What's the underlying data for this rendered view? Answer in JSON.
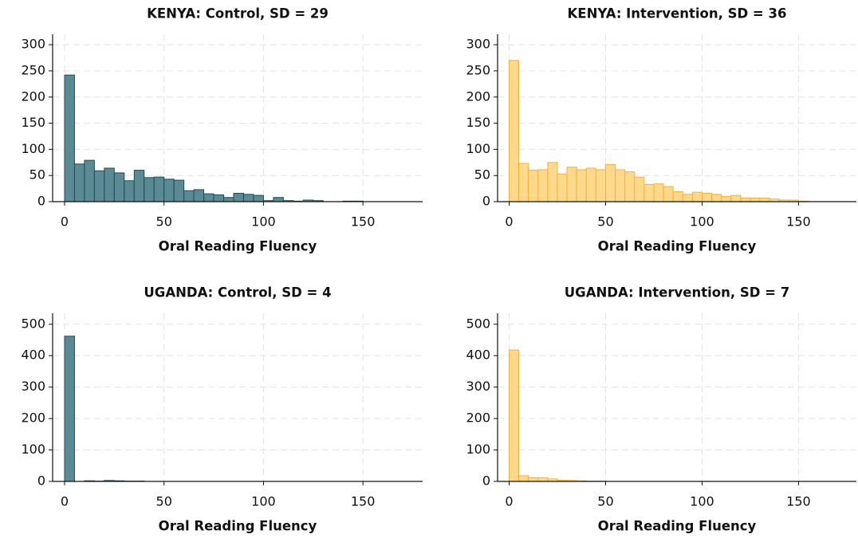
{
  "chart_data": [
    {
      "type": "histogram",
      "title": "KENYA: Control, SD = 29",
      "xlabel": "Oral Reading Fluency",
      "bins": [
        0,
        5,
        10,
        15,
        20,
        25,
        30,
        35,
        40,
        45,
        50,
        55,
        60,
        65,
        70,
        75,
        80,
        85,
        90,
        95,
        100,
        105,
        110,
        115,
        120,
        125,
        130,
        135,
        140,
        145,
        150,
        155,
        160,
        165,
        170
      ],
      "values": [
        242,
        72,
        79,
        59,
        64,
        55,
        40,
        60,
        46,
        47,
        43,
        41,
        21,
        23,
        15,
        13,
        8,
        16,
        14,
        12,
        2,
        8,
        2,
        1,
        3,
        2,
        0,
        0,
        1,
        1,
        0,
        0,
        0,
        0
      ],
      "color": "#5b8a94",
      "edgecolor": "#1e4d56",
      "xlim": [
        -6,
        180
      ],
      "ylim": [
        0,
        320
      ],
      "xticks": [
        0,
        50,
        100,
        150
      ],
      "yticks": [
        0,
        50,
        100,
        150,
        200,
        250,
        300
      ],
      "grid": true
    },
    {
      "type": "histogram",
      "title": "KENYA: Intervention, SD = 36",
      "xlabel": "Oral Reading Fluency",
      "bins": [
        0,
        5,
        10,
        15,
        20,
        25,
        30,
        35,
        40,
        45,
        50,
        55,
        60,
        65,
        70,
        75,
        80,
        85,
        90,
        95,
        100,
        105,
        110,
        115,
        120,
        125,
        130,
        135,
        140,
        145,
        150,
        155,
        160,
        165,
        170
      ],
      "values": [
        270,
        73,
        60,
        61,
        75,
        53,
        66,
        61,
        64,
        61,
        71,
        61,
        57,
        47,
        33,
        34,
        29,
        19,
        14,
        18,
        16,
        14,
        10,
        12,
        7,
        7,
        7,
        5,
        3,
        3,
        1,
        0,
        0,
        0
      ],
      "color": "#fed98c",
      "edgecolor": "#f4b13c",
      "xlim": [
        -6,
        180
      ],
      "ylim": [
        0,
        320
      ],
      "xticks": [
        0,
        50,
        100,
        150
      ],
      "yticks": [
        0,
        50,
        100,
        150,
        200,
        250,
        300
      ],
      "grid": true
    },
    {
      "type": "histogram",
      "title": "UGANDA: Control, SD = 4",
      "xlabel": "Oral Reading Fluency",
      "bins": [
        0,
        5,
        10,
        15,
        20,
        25,
        30,
        35,
        40,
        45,
        50,
        55,
        60,
        65,
        70,
        75,
        80,
        85,
        90,
        95,
        100,
        105,
        110,
        115,
        120,
        125,
        130,
        135,
        140,
        145,
        150,
        155,
        160,
        165,
        170
      ],
      "values": [
        462,
        0,
        2,
        1,
        3,
        2,
        1,
        1,
        0,
        0,
        0,
        0,
        0,
        0,
        0,
        0,
        0,
        0,
        0,
        0,
        0,
        0,
        0,
        0,
        0,
        0,
        0,
        0,
        0,
        0,
        0,
        0,
        0,
        0
      ],
      "color": "#5b8a94",
      "edgecolor": "#1e4d56",
      "xlim": [
        -6,
        180
      ],
      "ylim": [
        0,
        535
      ],
      "xticks": [
        0,
        50,
        100,
        150
      ],
      "yticks": [
        0,
        100,
        200,
        300,
        400,
        500
      ],
      "grid": true
    },
    {
      "type": "histogram",
      "title": "UGANDA: Intervention, SD = 7",
      "xlabel": "Oral Reading Fluency",
      "bins": [
        0,
        5,
        10,
        15,
        20,
        25,
        30,
        35,
        40,
        45,
        50,
        55,
        60,
        65,
        70,
        75,
        80,
        85,
        90,
        95,
        100,
        105,
        110,
        115,
        120,
        125,
        130,
        135,
        140,
        145,
        150,
        155,
        160,
        165,
        170
      ],
      "values": [
        418,
        18,
        12,
        12,
        8,
        4,
        3,
        2,
        1,
        1,
        0,
        0,
        0,
        0,
        0,
        0,
        0,
        0,
        0,
        0,
        0,
        0,
        0,
        0,
        0,
        0,
        0,
        0,
        0,
        0,
        0,
        0,
        0,
        0
      ],
      "color": "#fed98c",
      "edgecolor": "#f4b13c",
      "xlim": [
        -6,
        180
      ],
      "ylim": [
        0,
        535
      ],
      "xticks": [
        0,
        50,
        100,
        150
      ],
      "yticks": [
        0,
        100,
        200,
        300,
        400,
        500
      ],
      "grid": true
    }
  ]
}
